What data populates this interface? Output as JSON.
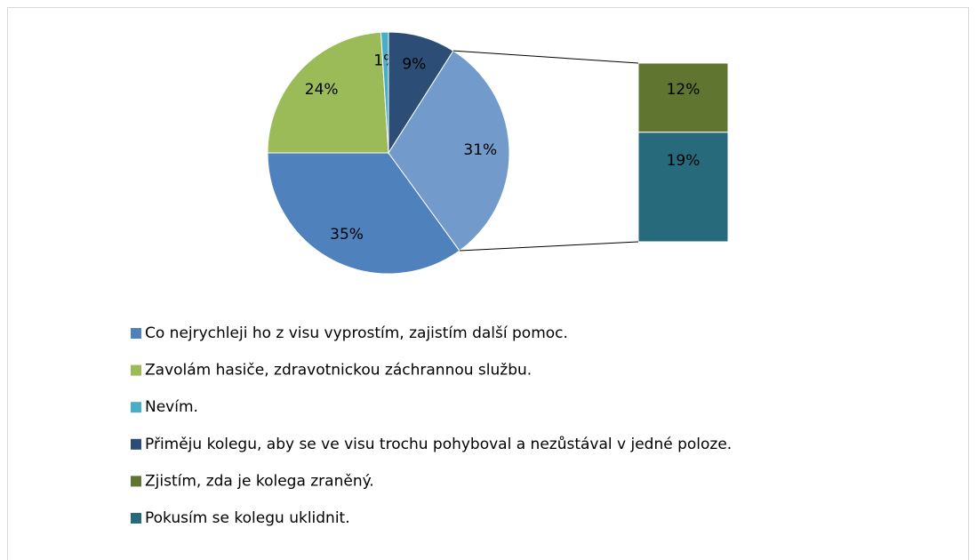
{
  "chart_data": {
    "type": "pie-of-bar",
    "categories": [
      "Co nejrychleji ho z visu vyprostím, zajistím další pomoc.",
      "Zavolám hasiče, zdravotnickou záchrannou službu.",
      "Nevím.",
      "Přiměju kolegu, aby se ve visu trochu pohyboval a nezůstával v jedné poloze."
    ],
    "values": [
      35,
      24,
      1,
      9
    ],
    "value_labels": [
      "35%",
      "24%",
      "1%",
      "9%"
    ],
    "colors": [
      "#4f81bd",
      "#9bbb59",
      "#4bacc6",
      "#2c4d75"
    ],
    "other_value": 31,
    "other_value_label": "31%",
    "other_color": "#729aca",
    "secondary": {
      "categories": [
        "Zjistím, zda je kolega zraněný.",
        "Pokusím se kolegu uklidnit."
      ],
      "values": [
        12,
        19
      ],
      "value_labels": [
        "12%",
        "19%"
      ],
      "colors": [
        "#5f7530",
        "#276a7c"
      ]
    }
  }
}
